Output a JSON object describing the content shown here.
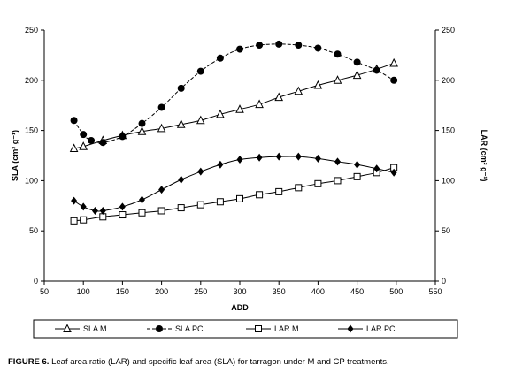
{
  "caption": {
    "lead": "FIGURE 6.",
    "text": " Leaf area ratio (LAR) and specific leaf area (SLA) for tarragon under M and CP treatments."
  },
  "chart_data": {
    "type": "line",
    "xlabel": "ADD",
    "ylabel_left": "SLA (cm² g⁻¹)",
    "ylabel_right": "LAR (cm² g⁻¹)",
    "xlim": [
      50,
      550
    ],
    "xticks": [
      50,
      100,
      150,
      200,
      250,
      300,
      350,
      400,
      450,
      500,
      550
    ],
    "ylim_left": [
      0,
      250
    ],
    "yticks_left": [
      0,
      50,
      100,
      150,
      200,
      250
    ],
    "ylim_right": [
      0,
      250
    ],
    "yticks_right": [
      0,
      50,
      100,
      150,
      200,
      250
    ],
    "grid": false,
    "legend_position": "bottom",
    "series": [
      {
        "name": "SLA M",
        "axis": "left",
        "marker": "open-triangle",
        "line": "solid",
        "color": "#000000",
        "x": [
          88,
          100,
          125,
          150,
          175,
          200,
          225,
          250,
          275,
          300,
          325,
          350,
          375,
          400,
          425,
          450,
          475,
          497
        ],
        "y": [
          132,
          134,
          140,
          145,
          149,
          152,
          156,
          160,
          166,
          171,
          176,
          183,
          189,
          195,
          200,
          205,
          211,
          217
        ]
      },
      {
        "name": "SLA PC",
        "axis": "left",
        "marker": "filled-circle",
        "line": "dashed",
        "color": "#000000",
        "x": [
          88,
          100,
          110,
          125,
          150,
          175,
          200,
          225,
          250,
          275,
          300,
          325,
          350,
          375,
          400,
          425,
          450,
          475,
          497
        ],
        "y": [
          160,
          146,
          140,
          138,
          144,
          157,
          173,
          192,
          209,
          222,
          231,
          235,
          236,
          235,
          232,
          226,
          218,
          210,
          200
        ]
      },
      {
        "name": "LAR M",
        "axis": "right",
        "marker": "open-square",
        "line": "solid",
        "color": "#000000",
        "x": [
          88,
          100,
          125,
          150,
          175,
          200,
          225,
          250,
          275,
          300,
          325,
          350,
          375,
          400,
          425,
          450,
          475,
          497
        ],
        "y": [
          60,
          61,
          64,
          66,
          68,
          70,
          73,
          76,
          79,
          82,
          86,
          89,
          93,
          97,
          100,
          104,
          108,
          113
        ]
      },
      {
        "name": "LAR PC",
        "axis": "right",
        "marker": "filled-diamond",
        "line": "solid",
        "color": "#000000",
        "x": [
          88,
          100,
          115,
          125,
          150,
          175,
          200,
          225,
          250,
          275,
          300,
          325,
          350,
          375,
          400,
          425,
          450,
          475,
          497
        ],
        "y": [
          80,
          74,
          70,
          70,
          74,
          81,
          91,
          101,
          109,
          116,
          121,
          123,
          124,
          124,
          122,
          119,
          116,
          112,
          108
        ]
      }
    ]
  }
}
